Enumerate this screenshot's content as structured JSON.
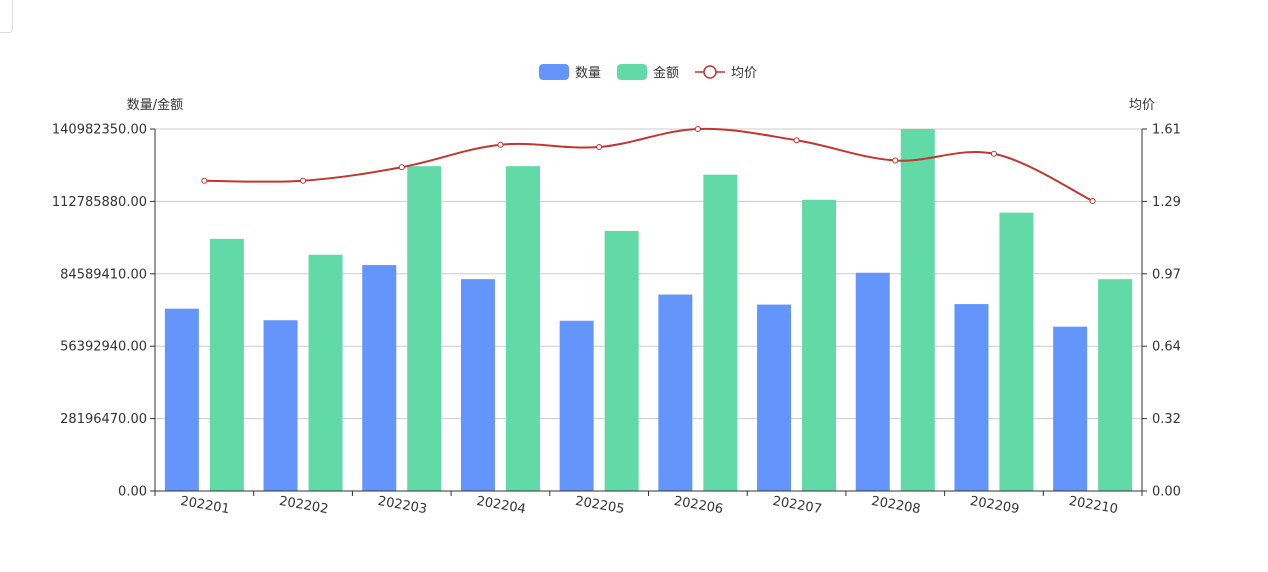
{
  "colors": {
    "quantity": "#6495fa",
    "amount": "#61daa8",
    "avg_price": "#c23531",
    "grid": "#cccccc",
    "axis": "#333333"
  },
  "chart_data": {
    "type": "bar",
    "categories": [
      "202201",
      "202202",
      "202203",
      "202204",
      "202205",
      "202206",
      "202207",
      "202208",
      "202209",
      "202210"
    ],
    "legend": {
      "placement": "top-center"
    },
    "y_left": {
      "name": "数量/金额",
      "min": 0,
      "max": 140982350,
      "ticks": [
        "0.00",
        "28196470.00",
        "56392940.00",
        "84589410.00",
        "112785880.00",
        "140982350.00"
      ]
    },
    "y_right": {
      "name": "均价",
      "min": 0,
      "max": 1.61,
      "ticks": [
        "0.00",
        "0.32",
        "0.64",
        "0.97",
        "1.29",
        "1.61"
      ]
    },
    "grid": true,
    "series": [
      {
        "name": "数量",
        "type": "bar",
        "axis": "left",
        "values": [
          71000000,
          66500000,
          88000000,
          82500000,
          66300000,
          76500000,
          72600000,
          85000000,
          72800000,
          64000000
        ]
      },
      {
        "name": "金额",
        "type": "bar",
        "axis": "left",
        "values": [
          98200000,
          92000000,
          126500000,
          126500000,
          101300000,
          123200000,
          113400000,
          140982350,
          108400000,
          82500000
        ]
      },
      {
        "name": "均价",
        "type": "line",
        "smooth": true,
        "axis": "right",
        "values": [
          1.38,
          1.38,
          1.44,
          1.54,
          1.53,
          1.61,
          1.56,
          1.47,
          1.5,
          1.29
        ]
      }
    ]
  }
}
